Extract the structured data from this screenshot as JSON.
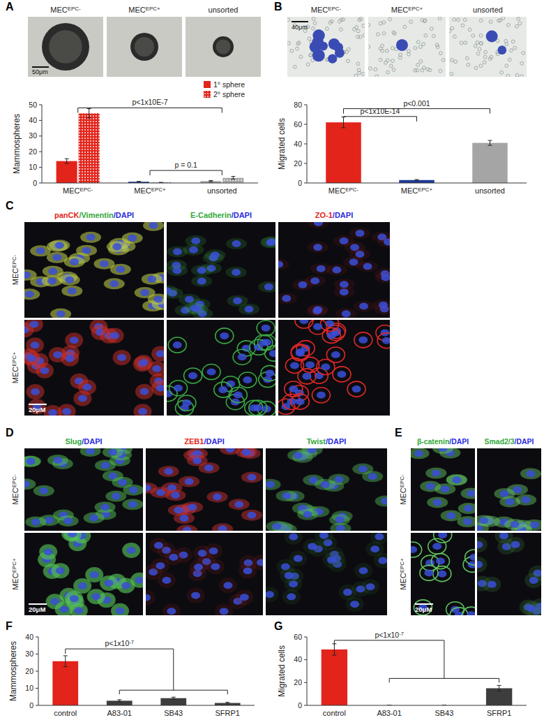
{
  "chart_data": [
    {
      "type": "bar",
      "ylabel": "Mammospheres",
      "categories": [
        "MECEPC-",
        "MECEPC+",
        "unsorted"
      ],
      "series": [
        {
          "name": "1° sphere",
          "color": "#e3241b",
          "colors": [
            "#e3241b",
            "#1f3c99",
            "#a5a5a5"
          ],
          "values": [
            14,
            0.8,
            1.2
          ],
          "errors": [
            1.5,
            0.2,
            0.4
          ]
        },
        {
          "name": "2° sphere",
          "color": "#e3241b",
          "colors": [
            "#e3241b",
            "#1f3c99",
            "#a5a5a5"
          ],
          "line_style": "dotted",
          "values": [
            44.5,
            0.3,
            3.3
          ],
          "errors": [
            3,
            0.1,
            0.9
          ]
        }
      ],
      "ylim": [
        0,
        50
      ],
      "yticks": [
        0,
        10,
        20,
        30,
        40,
        50
      ],
      "grid": false,
      "legend": "top-right",
      "annotations": [
        {
          "text": "p<1x10E-7",
          "from": 0,
          "to": [
            2
          ],
          "y": 48
        },
        {
          "text": "p = 0.1",
          "from": 1,
          "to": [
            2
          ],
          "y": 8
        }
      ]
    },
    {
      "type": "bar",
      "ylabel": "Migrated cells",
      "categories": [
        "MECEPC-",
        "MECEPC+",
        "unsorted"
      ],
      "values": [
        62,
        3,
        41
      ],
      "errors": [
        5.5,
        0.5,
        2.5
      ],
      "colors": [
        "#e3241b",
        "#1f3c99",
        "#a5a5a5"
      ],
      "ylim": [
        0,
        80
      ],
      "yticks": [
        0,
        20,
        40,
        60,
        80
      ],
      "grid": false,
      "annotations": [
        {
          "text": "p<1x10E-14",
          "from": 0,
          "to": [
            1
          ],
          "y": 68
        },
        {
          "text": "p<0.001",
          "from": 0,
          "to": [
            2
          ],
          "y": 76
        }
      ]
    },
    {
      "type": "bar",
      "ylabel": "Mammospheres",
      "categories": [
        "control",
        "A83-01",
        "SB43",
        "SFRP1"
      ],
      "values": [
        25.8,
        2.7,
        4.2,
        1.4
      ],
      "errors": [
        3.2,
        0.6,
        0.6,
        0.4
      ],
      "colors": [
        "#e3241b",
        "#3d3d3d",
        "#3d3d3d",
        "#3d3d3d"
      ],
      "ylim": [
        0,
        40
      ],
      "yticks": [
        0,
        10,
        20,
        30,
        40
      ],
      "grid": false,
      "annotations": [
        {
          "text": "p<1x10-7",
          "from": 0,
          "to": [
            1,
            2,
            3
          ],
          "y": 33
        }
      ]
    },
    {
      "type": "bar",
      "ylabel": "Migrated cells",
      "categories": [
        "control",
        "A83-01",
        "SB43",
        "SFRP1"
      ],
      "values": [
        49,
        0,
        0,
        15
      ],
      "errors": [
        5,
        0,
        0,
        2.5
      ],
      "colors": [
        "#e3241b",
        "#3d3d3d",
        "#3d3d3d",
        "#3d3d3d"
      ],
      "ylim": [
        0,
        60
      ],
      "yticks": [
        0,
        20,
        40,
        60
      ],
      "grid": false,
      "annotations": [
        {
          "text": "p<1x10-7",
          "from": 0,
          "to": [
            1,
            2,
            3
          ],
          "y": 57
        }
      ]
    }
  ],
  "figure": {
    "panel_letters": [
      "A",
      "B",
      "C",
      "D",
      "E",
      "F",
      "G"
    ],
    "photo_panels": [
      {
        "labels": [
          "MECEPC-",
          "MECEPC+",
          "unsorted"
        ],
        "scale_bar": "50μm"
      },
      {
        "labels": [
          "MECEPC-",
          "MECEPC+",
          "unsorted"
        ],
        "scale_bar": "40μm"
      }
    ],
    "stain_panels": [
      {
        "rows": [
          "MECEPC-",
          "MECEPC+"
        ],
        "columns": [
          [
            {
              "text": "panCK",
              "color": "#e3241b"
            },
            {
              "text": "/Vimentin",
              "color": "#2fa83a"
            },
            {
              "text": "/DAPI",
              "color": "#2a2adf"
            }
          ],
          [
            {
              "text": "E-Cadherin",
              "color": "#2fa83a"
            },
            {
              "text": "/DAPI",
              "color": "#2a2adf"
            }
          ],
          [
            {
              "text": "ZO-1",
              "color": "#e3241b"
            },
            {
              "text": "/DAPI",
              "color": "#2a2adf"
            }
          ]
        ],
        "scale_bar": "20μM"
      },
      {
        "rows": [
          "MECEPC-",
          "MECEPC+"
        ],
        "columns": [
          [
            {
              "text": "Slug",
              "color": "#2fa83a"
            },
            {
              "text": "/DAPI",
              "color": "#2a2adf"
            }
          ],
          [
            {
              "text": "ZEB1",
              "color": "#e3241b"
            },
            {
              "text": "/DAPI",
              "color": "#2a2adf"
            }
          ],
          [
            {
              "text": "Twist",
              "color": "#2fa83a"
            },
            {
              "text": "/DAPI",
              "color": "#2a2adf"
            }
          ]
        ],
        "scale_bar": "20μM"
      },
      {
        "rows": [
          "MECEPC-",
          "MECEPC+"
        ],
        "columns": [
          [
            {
              "text": "β-catenin",
              "color": "#2fa83a"
            },
            {
              "text": "/DAPI",
              "color": "#2a2adf"
            }
          ],
          [
            {
              "text": "Smad2/3",
              "color": "#2fa83a"
            },
            {
              "text": "/DAPI",
              "color": "#2a2adf"
            }
          ]
        ],
        "scale_bar": "20μM"
      }
    ]
  }
}
